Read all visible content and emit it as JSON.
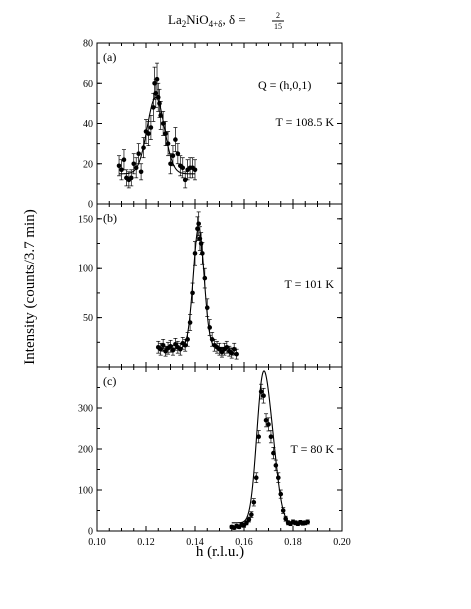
{
  "chart_data": {
    "type": "scatter",
    "title": {
      "formula_main": "La",
      "formula_sub1": "2",
      "formula_mid": "NiO",
      "formula_sub2": "4+δ",
      "delta_label": ", δ = ",
      "frac_num": "2",
      "frac_den": "15"
    },
    "xlabel": "h  (r.l.u.)",
    "ylabel": "Intensity (counts/3.7 min)",
    "xlim": [
      0.1,
      0.2
    ],
    "xticks": [
      "0.10",
      "0.12",
      "0.14",
      "0.16",
      "0.18",
      "0.20"
    ],
    "q_label": "Q = (h,0,1)",
    "panels": [
      {
        "label": "(a)",
        "temperature": "T = 108.5 K",
        "ylim": [
          0,
          80
        ],
        "yticks": [
          "0",
          "20",
          "40",
          "60",
          "80"
        ],
        "fit": {
          "center": 0.124,
          "width": 0.0035,
          "amplitude": 38,
          "background": 15
        },
        "points": [
          {
            "x": 0.109,
            "y": 19,
            "err": 5
          },
          {
            "x": 0.11,
            "y": 17,
            "err": 5
          },
          {
            "x": 0.111,
            "y": 22,
            "err": 5
          },
          {
            "x": 0.112,
            "y": 13,
            "err": 4
          },
          {
            "x": 0.113,
            "y": 12,
            "err": 4
          },
          {
            "x": 0.114,
            "y": 13,
            "err": 4
          },
          {
            "x": 0.115,
            "y": 20,
            "err": 5
          },
          {
            "x": 0.116,
            "y": 18,
            "err": 5
          },
          {
            "x": 0.117,
            "y": 25,
            "err": 5
          },
          {
            "x": 0.118,
            "y": 16,
            "err": 4
          },
          {
            "x": 0.119,
            "y": 28,
            "err": 5
          },
          {
            "x": 0.12,
            "y": 36,
            "err": 6
          },
          {
            "x": 0.121,
            "y": 35,
            "err": 6
          },
          {
            "x": 0.122,
            "y": 38,
            "err": 6
          },
          {
            "x": 0.123,
            "y": 48,
            "err": 7
          },
          {
            "x": 0.124,
            "y": 55,
            "err": 7
          },
          {
            "x": 0.125,
            "y": 53,
            "err": 7
          },
          {
            "x": 0.1255,
            "y": 50,
            "err": 7
          },
          {
            "x": 0.126,
            "y": 44,
            "err": 7
          },
          {
            "x": 0.127,
            "y": 40,
            "err": 6
          },
          {
            "x": 0.128,
            "y": 35,
            "err": 6
          },
          {
            "x": 0.129,
            "y": 30,
            "err": 6
          },
          {
            "x": 0.13,
            "y": 20,
            "err": 5
          },
          {
            "x": 0.131,
            "y": 24,
            "err": 5
          },
          {
            "x": 0.132,
            "y": 32,
            "err": 6
          },
          {
            "x": 0.133,
            "y": 25,
            "err": 5
          },
          {
            "x": 0.134,
            "y": 19,
            "err": 5
          },
          {
            "x": 0.135,
            "y": 18,
            "err": 5
          },
          {
            "x": 0.136,
            "y": 12,
            "err": 4
          },
          {
            "x": 0.137,
            "y": 17,
            "err": 5
          },
          {
            "x": 0.138,
            "y": 18,
            "err": 5
          },
          {
            "x": 0.139,
            "y": 18,
            "err": 5
          },
          {
            "x": 0.14,
            "y": 17,
            "err": 5
          },
          {
            "x": 0.1245,
            "y": 62,
            "err": 8
          },
          {
            "x": 0.1235,
            "y": 60,
            "err": 8
          }
        ]
      },
      {
        "label": "(b)",
        "temperature": "T = 101 K",
        "ylim": [
          0,
          165
        ],
        "yticks": [
          "50",
          "100",
          "150"
        ],
        "fit": {
          "center": 0.1415,
          "width": 0.0022,
          "amplitude": 122,
          "background": 19
        },
        "points": [
          {
            "x": 0.125,
            "y": 20,
            "err": 6
          },
          {
            "x": 0.126,
            "y": 18,
            "err": 6
          },
          {
            "x": 0.127,
            "y": 22,
            "err": 6
          },
          {
            "x": 0.128,
            "y": 16,
            "err": 5
          },
          {
            "x": 0.129,
            "y": 19,
            "err": 6
          },
          {
            "x": 0.13,
            "y": 21,
            "err": 6
          },
          {
            "x": 0.131,
            "y": 17,
            "err": 5
          },
          {
            "x": 0.132,
            "y": 23,
            "err": 6
          },
          {
            "x": 0.133,
            "y": 20,
            "err": 6
          },
          {
            "x": 0.134,
            "y": 18,
            "err": 6
          },
          {
            "x": 0.135,
            "y": 24,
            "err": 6
          },
          {
            "x": 0.136,
            "y": 22,
            "err": 6
          },
          {
            "x": 0.137,
            "y": 28,
            "err": 7
          },
          {
            "x": 0.138,
            "y": 45,
            "err": 8
          },
          {
            "x": 0.139,
            "y": 75,
            "err": 10
          },
          {
            "x": 0.14,
            "y": 115,
            "err": 12
          },
          {
            "x": 0.141,
            "y": 140,
            "err": 12
          },
          {
            "x": 0.1415,
            "y": 145,
            "err": 12
          },
          {
            "x": 0.142,
            "y": 130,
            "err": 12
          },
          {
            "x": 0.1425,
            "y": 125,
            "err": 11
          },
          {
            "x": 0.143,
            "y": 115,
            "err": 11
          },
          {
            "x": 0.144,
            "y": 90,
            "err": 10
          },
          {
            "x": 0.145,
            "y": 60,
            "err": 9
          },
          {
            "x": 0.146,
            "y": 40,
            "err": 8
          },
          {
            "x": 0.147,
            "y": 28,
            "err": 7
          },
          {
            "x": 0.148,
            "y": 22,
            "err": 6
          },
          {
            "x": 0.149,
            "y": 20,
            "err": 6
          },
          {
            "x": 0.15,
            "y": 18,
            "err": 6
          },
          {
            "x": 0.151,
            "y": 15,
            "err": 5
          },
          {
            "x": 0.152,
            "y": 18,
            "err": 6
          },
          {
            "x": 0.153,
            "y": 20,
            "err": 6
          },
          {
            "x": 0.154,
            "y": 16,
            "err": 5
          },
          {
            "x": 0.155,
            "y": 14,
            "err": 5
          },
          {
            "x": 0.156,
            "y": 18,
            "err": 6
          },
          {
            "x": 0.157,
            "y": 13,
            "err": 5
          }
        ]
      },
      {
        "label": "(c)",
        "temperature": "T = 80 K",
        "ylim": [
          0,
          400
        ],
        "yticks": [
          "0",
          "100",
          "200",
          "300"
        ],
        "fit": {
          "center": 0.1675,
          "width": 0.0025,
          "amplitude": 320,
          "background": 20,
          "shoulder": {
            "center": 0.1715,
            "width": 0.0025,
            "amplitude": 150
          }
        },
        "points": [
          {
            "x": 0.155,
            "y": 10,
            "err": 4
          },
          {
            "x": 0.156,
            "y": 8,
            "err": 4
          },
          {
            "x": 0.157,
            "y": 12,
            "err": 4
          },
          {
            "x": 0.158,
            "y": 10,
            "err": 4
          },
          {
            "x": 0.159,
            "y": 15,
            "err": 5
          },
          {
            "x": 0.16,
            "y": 14,
            "err": 5
          },
          {
            "x": 0.161,
            "y": 20,
            "err": 5
          },
          {
            "x": 0.162,
            "y": 28,
            "err": 6
          },
          {
            "x": 0.163,
            "y": 40,
            "err": 7
          },
          {
            "x": 0.164,
            "y": 70,
            "err": 9
          },
          {
            "x": 0.165,
            "y": 130,
            "err": 12
          },
          {
            "x": 0.166,
            "y": 230,
            "err": 15
          },
          {
            "x": 0.167,
            "y": 340,
            "err": 18
          },
          {
            "x": 0.168,
            "y": 330,
            "err": 18
          },
          {
            "x": 0.169,
            "y": 270,
            "err": 16
          },
          {
            "x": 0.17,
            "y": 260,
            "err": 16
          },
          {
            "x": 0.171,
            "y": 230,
            "err": 15
          },
          {
            "x": 0.172,
            "y": 190,
            "err": 14
          },
          {
            "x": 0.173,
            "y": 160,
            "err": 13
          },
          {
            "x": 0.174,
            "y": 130,
            "err": 12
          },
          {
            "x": 0.175,
            "y": 90,
            "err": 10
          },
          {
            "x": 0.176,
            "y": 50,
            "err": 7
          },
          {
            "x": 0.177,
            "y": 30,
            "err": 6
          },
          {
            "x": 0.178,
            "y": 20,
            "err": 5
          },
          {
            "x": 0.179,
            "y": 18,
            "err": 5
          },
          {
            "x": 0.18,
            "y": 22,
            "err": 5
          },
          {
            "x": 0.181,
            "y": 20,
            "err": 5
          },
          {
            "x": 0.182,
            "y": 18,
            "err": 5
          },
          {
            "x": 0.183,
            "y": 21,
            "err": 5
          },
          {
            "x": 0.184,
            "y": 19,
            "err": 5
          },
          {
            "x": 0.185,
            "y": 20,
            "err": 5
          },
          {
            "x": 0.186,
            "y": 22,
            "err": 5
          }
        ]
      }
    ]
  }
}
